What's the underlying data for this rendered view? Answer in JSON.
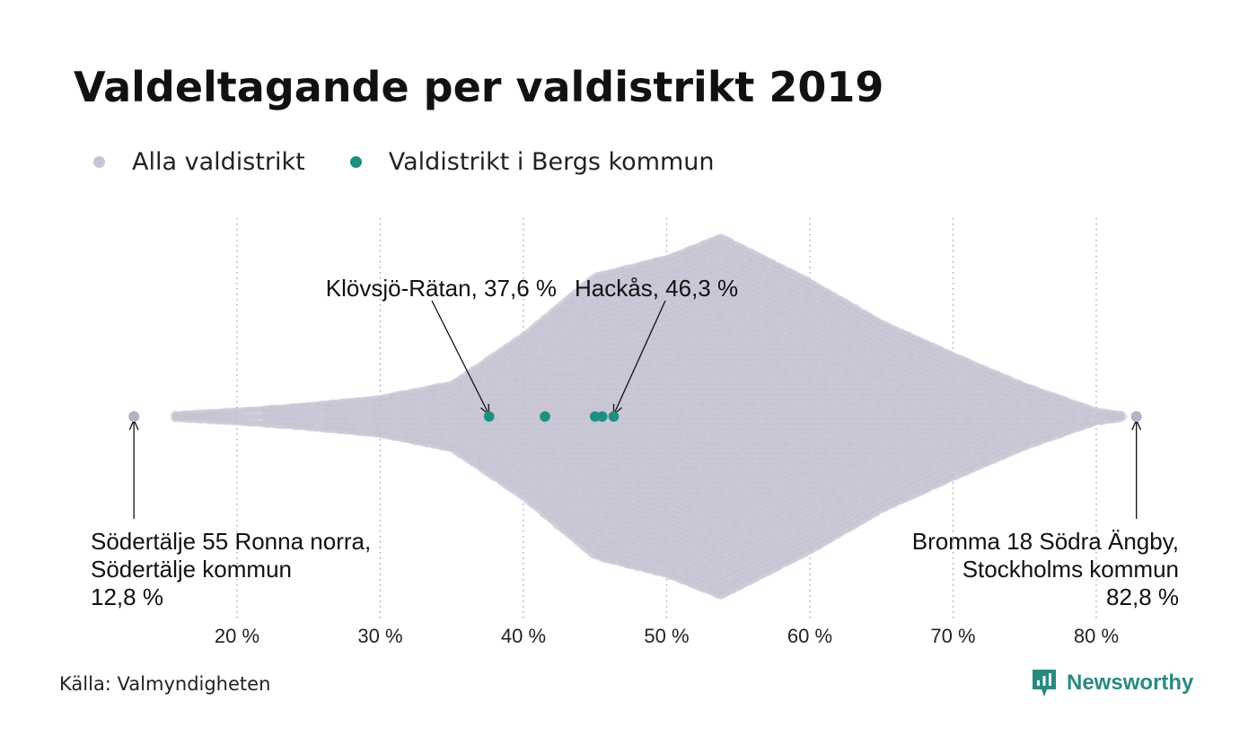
{
  "title": "Valdeltagande per valdistrikt 2019",
  "legend": [
    {
      "label": "Alla valdistrikt",
      "color": "#c6c4d2"
    },
    {
      "label": "Valdistrikt i Bergs kommun",
      "color": "#1a9080"
    }
  ],
  "source": "Källa: Valmyndigheten",
  "brand": {
    "name": "Newsworthy",
    "icon": "newsworthy-logo-icon",
    "color": "#2a8a80"
  },
  "chart_data": {
    "type": "scatter",
    "subtype": "beeswarm",
    "title": "Valdeltagande per valdistrikt 2019",
    "xlabel": "",
    "ylabel": "",
    "xlim": [
      12,
      84
    ],
    "x_ticks": [
      20,
      30,
      40,
      50,
      60,
      70,
      80
    ],
    "x_tick_labels": [
      "20 %",
      "30 %",
      "40 %",
      "50 %",
      "60 %",
      "70 %",
      "80 %"
    ],
    "grid": "vertical dotted",
    "legend_position": "top-left",
    "distribution": {
      "min": 12.8,
      "peak": 53.8,
      "max": 82.8,
      "density_profile": [
        {
          "x": 15.5,
          "relative_width": 0.01
        },
        {
          "x": 20,
          "relative_width": 0.03
        },
        {
          "x": 25,
          "relative_width": 0.06
        },
        {
          "x": 30,
          "relative_width": 0.1
        },
        {
          "x": 35,
          "relative_width": 0.18
        },
        {
          "x": 40,
          "relative_width": 0.45
        },
        {
          "x": 45,
          "relative_width": 0.78
        },
        {
          "x": 50,
          "relative_width": 0.88
        },
        {
          "x": 53.8,
          "relative_width": 1.0
        },
        {
          "x": 60,
          "relative_width": 0.75
        },
        {
          "x": 65,
          "relative_width": 0.52
        },
        {
          "x": 70,
          "relative_width": 0.34
        },
        {
          "x": 75,
          "relative_width": 0.17
        },
        {
          "x": 80,
          "relative_width": 0.03
        },
        {
          "x": 82.8,
          "relative_width": 0.0
        }
      ]
    },
    "series": [
      {
        "name": "Alla valdistrikt",
        "color": "#c6c4d2",
        "highlighted_points": [
          12.8,
          82.8
        ]
      },
      {
        "name": "Valdistrikt i Bergs kommun",
        "color": "#1a9080",
        "values": [
          37.6,
          41.5,
          45.0,
          45.5,
          46.3
        ]
      }
    ],
    "annotations": [
      {
        "lines": [
          "Klövsjö-Rätan, 37,6 %"
        ],
        "x": 37.6
      },
      {
        "lines": [
          "Hackås, 46,3 %"
        ],
        "x": 46.3
      },
      {
        "lines": [
          "Södertälje 55 Ronna norra,",
          "Södertälje kommun",
          "12,8 %"
        ],
        "x": 12.8
      },
      {
        "lines": [
          "Bromma 18 Södra Ängby,",
          "Stockholms kommun",
          "82,8 %"
        ],
        "x": 82.8
      }
    ]
  }
}
